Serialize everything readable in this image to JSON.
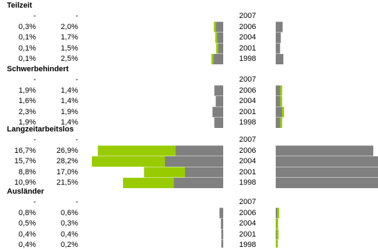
{
  "chart_data": {
    "type": "bar",
    "colors": {
      "grey": "#808080",
      "green": "#99cc00"
    },
    "groups": [
      {
        "title": "Teilzeit",
        "rows": [
          {
            "year": "2007",
            "a": "-",
            "b": "-",
            "left": {
              "grey": null,
              "green": null
            },
            "right": {
              "grey": null,
              "green": null
            }
          },
          {
            "year": "2006",
            "a": "0,3%",
            "b": "2,0%",
            "left": {
              "grey": 2.0,
              "green": 0.3
            },
            "right": {
              "grey": 1.9,
              "green": 0
            }
          },
          {
            "year": "2004",
            "a": "0,1%",
            "b": "1,7%",
            "left": {
              "grey": 1.7,
              "green": 0.1
            },
            "right": {
              "grey": 1.4,
              "green": 0
            }
          },
          {
            "year": "2001",
            "a": "0,1%",
            "b": "1,5%",
            "left": {
              "grey": 1.5,
              "green": 0.1
            },
            "right": {
              "grey": 1.2,
              "green": 0
            }
          },
          {
            "year": "1998",
            "a": "0,1%",
            "b": "2,5%",
            "left": {
              "grey": 2.5,
              "green": 0.1
            },
            "right": {
              "grey": 2.1,
              "green": 0
            }
          }
        ]
      },
      {
        "title": "Schwerbehindert",
        "rows": [
          {
            "year": "2007",
            "a": "-",
            "b": "-",
            "left": {
              "grey": null,
              "green": null
            },
            "right": {
              "grey": null,
              "green": null
            }
          },
          {
            "year": "2006",
            "a": "1,9%",
            "b": "1,4%",
            "left": {
              "grey": 1.9,
              "green": 0
            },
            "right": {
              "grey": 1.4,
              "green": 0.3
            }
          },
          {
            "year": "2004",
            "a": "1,6%",
            "b": "1,4%",
            "left": {
              "grey": 1.6,
              "green": 0
            },
            "right": {
              "grey": 1.4,
              "green": 0.2
            }
          },
          {
            "year": "2001",
            "a": "2,3%",
            "b": "1,9%",
            "left": {
              "grey": 2.3,
              "green": 0
            },
            "right": {
              "grey": 1.9,
              "green": 0.4
            }
          },
          {
            "year": "1998",
            "a": "1,9%",
            "b": "1,4%",
            "left": {
              "grey": 1.9,
              "green": 0
            },
            "right": {
              "grey": 1.4,
              "green": 0.4
            }
          }
        ]
      },
      {
        "title": "Langzeitarbeitslos",
        "rows": [
          {
            "year": "2007",
            "a": "-",
            "b": "-",
            "left": {
              "grey": null,
              "green": null
            },
            "right": {
              "grey": null,
              "green": null
            }
          },
          {
            "year": "2006",
            "a": "16,7%",
            "b": "26,9%",
            "left": {
              "grey": 26.9,
              "green": 16.7
            },
            "right": {
              "grey": 26.9,
              "green": 0
            }
          },
          {
            "year": "2004",
            "a": "15,7%",
            "b": "28,2%",
            "left": {
              "grey": 28.2,
              "green": 15.7
            },
            "right": {
              "grey": 28.2,
              "green": 0
            }
          },
          {
            "year": "2001",
            "a": "8,8%",
            "b": "17,0%",
            "left": {
              "grey": 17.0,
              "green": 8.8
            },
            "right": {
              "grey": 28.2,
              "green": 0
            }
          },
          {
            "year": "1998",
            "a": "10,9%",
            "b": "21,5%",
            "left": {
              "grey": 21.5,
              "green": 10.9
            },
            "right": {
              "grey": 28.2,
              "green": 0
            }
          }
        ]
      },
      {
        "title": "Ausländer",
        "rows": [
          {
            "year": "2007",
            "a": "-",
            "b": "-",
            "left": {
              "grey": null,
              "green": null
            },
            "right": {
              "grey": null,
              "green": null
            }
          },
          {
            "year": "2006",
            "a": "0,8%",
            "b": "0,6%",
            "left": {
              "grey": 0.8,
              "green": 0
            },
            "right": {
              "grey": 0.6,
              "green": 0.3
            }
          },
          {
            "year": "2004",
            "a": "0,5%",
            "b": "0,3%",
            "left": {
              "grey": 0.5,
              "green": 0
            },
            "right": {
              "grey": 0.3,
              "green": 0.2
            }
          },
          {
            "year": "2001",
            "a": "0,4%",
            "b": "0,4%",
            "left": {
              "grey": 0.4,
              "green": 0
            },
            "right": {
              "grey": 0.4,
              "green": 0.1
            }
          },
          {
            "year": "1998",
            "a": "0,4%",
            "b": "0,2%",
            "left": {
              "grey": 0.4,
              "green": 0
            },
            "right": {
              "grey": 0.2,
              "green": 0.1
            }
          }
        ]
      }
    ]
  }
}
